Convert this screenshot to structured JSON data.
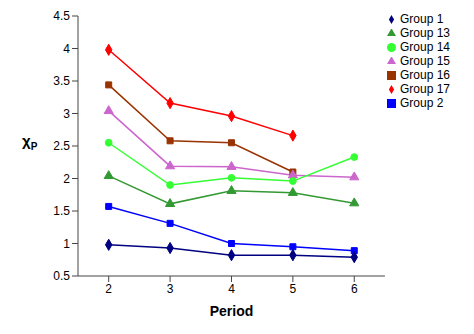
{
  "chart_data": {
    "type": "line",
    "x_label": "Period",
    "y_label": "χP",
    "x": [
      2,
      3,
      4,
      5,
      6
    ],
    "xlim": [
      1.5,
      6.5
    ],
    "xticks": [
      2,
      3,
      4,
      5,
      6
    ],
    "ylim": [
      0.5,
      4.5
    ],
    "yticks": [
      0.5,
      1,
      1.5,
      2,
      2.5,
      3,
      3.5,
      4,
      4.5
    ],
    "grid": false,
    "legend": "top-right",
    "series": [
      {
        "name": "Group 17",
        "color": "#ff0000",
        "marker": "diamond",
        "values": [
          3.98,
          3.16,
          2.96,
          2.66,
          null
        ]
      },
      {
        "name": "Group 16",
        "color": "#993300",
        "marker": "square",
        "values": [
          3.44,
          2.58,
          2.55,
          2.1,
          null
        ]
      },
      {
        "name": "Group 15",
        "color": "#cc66cc",
        "marker": "triangle",
        "values": [
          3.04,
          2.19,
          2.18,
          2.05,
          2.02
        ]
      },
      {
        "name": "Group 14",
        "color": "#33ff33",
        "marker": "circle",
        "values": [
          2.55,
          1.9,
          2.01,
          1.96,
          2.33
        ]
      },
      {
        "name": "Group 13",
        "color": "#339933",
        "marker": "triangle",
        "values": [
          2.04,
          1.61,
          1.81,
          1.78,
          1.62
        ]
      },
      {
        "name": "Group 2",
        "color": "#0000ff",
        "marker": "square",
        "values": [
          1.57,
          1.31,
          1.0,
          0.95,
          0.89
        ]
      },
      {
        "name": "Group 1",
        "color": "#000080",
        "marker": "diamond",
        "values": [
          0.98,
          0.93,
          0.82,
          0.82,
          0.79
        ]
      }
    ]
  }
}
